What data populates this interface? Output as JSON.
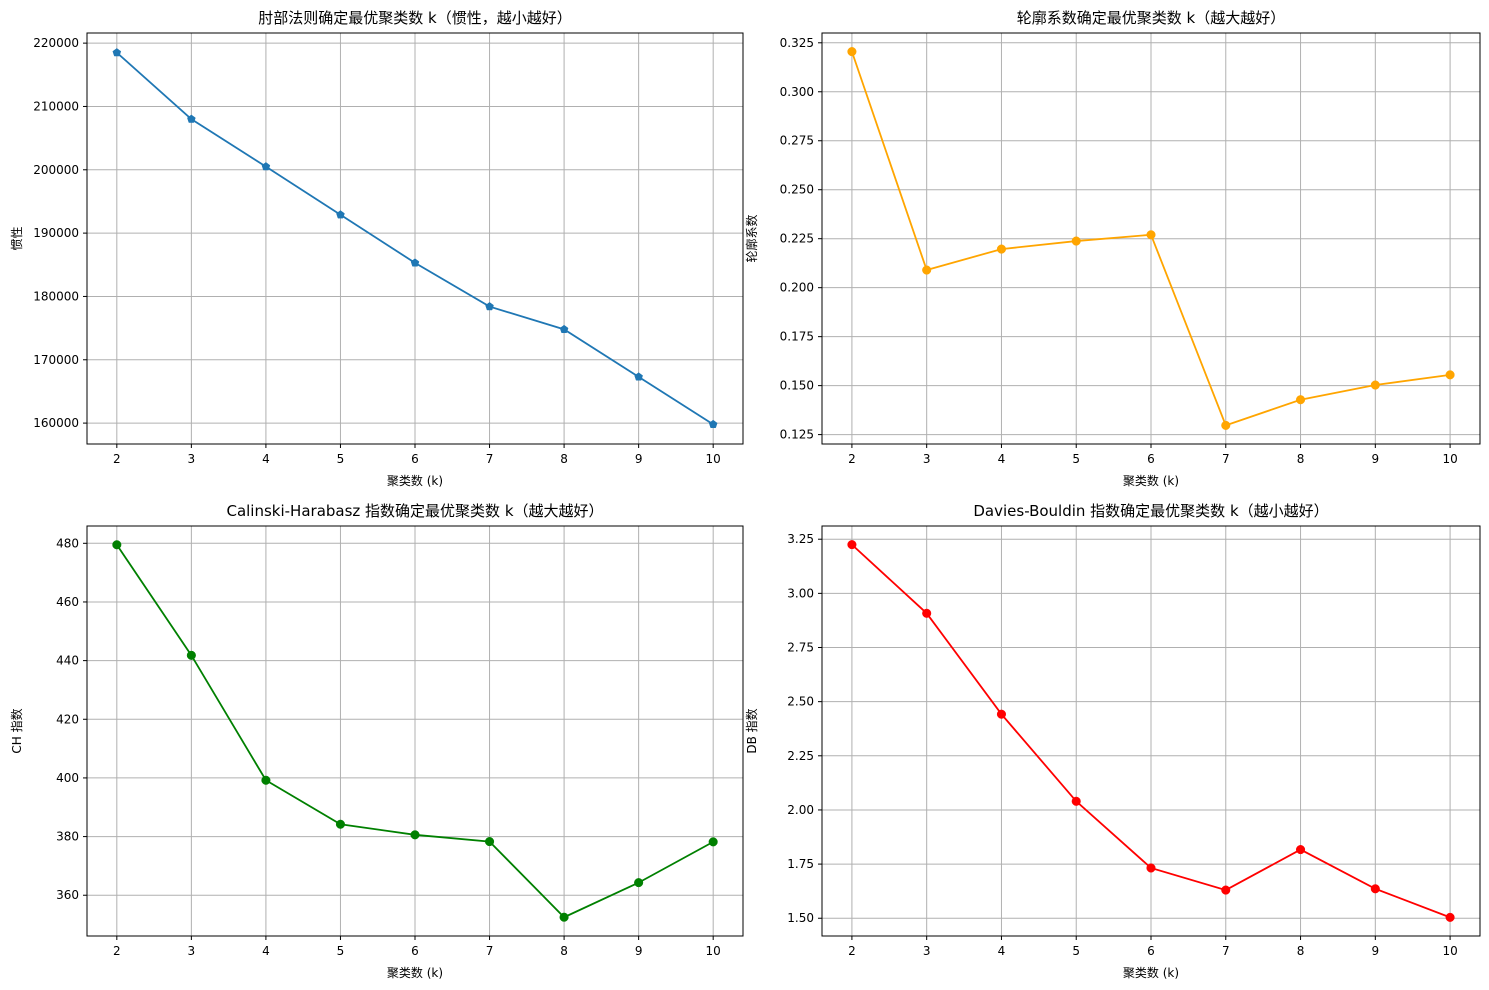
{
  "chart_data": [
    {
      "type": "line",
      "title": "肘部法则确定最优聚类数 k（惯性，越小越好）",
      "xlabel": "聚类数 (k)",
      "ylabel": "惯性",
      "x": [
        2,
        3,
        4,
        5,
        6,
        7,
        8,
        9,
        10
      ],
      "series": [
        {
          "color": "#1f77b4",
          "marker": "pentagon",
          "values": [
            218500,
            208000,
            200500,
            192900,
            185300,
            178400,
            174800,
            167300,
            159800
          ]
        }
      ],
      "xlim": [
        1.6,
        10.4
      ],
      "ylim": [
        156700,
        221600
      ],
      "xticks": [
        2,
        3,
        4,
        5,
        6,
        7,
        8,
        9,
        10
      ],
      "yticks": [
        160000,
        170000,
        180000,
        190000,
        200000,
        210000,
        220000
      ],
      "ytick_labels": [
        "160000",
        "170000",
        "180000",
        "190000",
        "200000",
        "210000",
        "220000"
      ],
      "grid": true
    },
    {
      "type": "line",
      "title": "轮廓系数确定最优聚类数 k（越大越好）",
      "xlabel": "聚类数 (k)",
      "ylabel": "轮廓系数",
      "x": [
        2,
        3,
        4,
        5,
        6,
        7,
        8,
        9,
        10
      ],
      "series": [
        {
          "color": "#ffa500",
          "marker": "circle",
          "values": [
            0.3205,
            0.209,
            0.2197,
            0.2238,
            0.227,
            0.1297,
            0.1428,
            0.1503,
            0.1555
          ]
        }
      ],
      "xlim": [
        1.6,
        10.4
      ],
      "ylim": [
        0.1202,
        0.33
      ],
      "xticks": [
        2,
        3,
        4,
        5,
        6,
        7,
        8,
        9,
        10
      ],
      "yticks": [
        0.125,
        0.15,
        0.175,
        0.2,
        0.225,
        0.25,
        0.275,
        0.3,
        0.325
      ],
      "ytick_labels": [
        "0.125",
        "0.150",
        "0.175",
        "0.200",
        "0.225",
        "0.250",
        "0.275",
        "0.300",
        "0.325"
      ],
      "grid": true
    },
    {
      "type": "line",
      "title": "Calinski-Harabasz 指数确定最优聚类数 k（越大越好）",
      "xlabel": "聚类数 (k)",
      "ylabel": "CH 指数",
      "x": [
        2,
        3,
        4,
        5,
        6,
        7,
        8,
        9,
        10
      ],
      "series": [
        {
          "color": "#008000",
          "marker": "circle",
          "values": [
            479.5,
            441.8,
            399.2,
            384.2,
            380.6,
            378.3,
            352.5,
            364.3,
            378.2
          ]
        }
      ],
      "xlim": [
        1.6,
        10.4
      ],
      "ylim": [
        346.1,
        485.9
      ],
      "xticks": [
        2,
        3,
        4,
        5,
        6,
        7,
        8,
        9,
        10
      ],
      "yticks": [
        360,
        380,
        400,
        420,
        440,
        460,
        480
      ],
      "ytick_labels": [
        "360",
        "380",
        "400",
        "420",
        "440",
        "460",
        "480"
      ],
      "grid": true
    },
    {
      "type": "line",
      "title": "Davies-Bouldin 指数确定最优聚类数 k（越小越好）",
      "xlabel": "聚类数 (k)",
      "ylabel": "DB 指数",
      "x": [
        2,
        3,
        4,
        5,
        6,
        7,
        8,
        9,
        10
      ],
      "series": [
        {
          "color": "#ff0000",
          "marker": "circle",
          "values": [
            3.225,
            2.908,
            2.442,
            2.04,
            1.732,
            1.63,
            1.817,
            1.636,
            1.504
          ]
        }
      ],
      "xlim": [
        1.6,
        10.4
      ],
      "ylim": [
        1.418,
        3.311
      ],
      "xticks": [
        2,
        3,
        4,
        5,
        6,
        7,
        8,
        9,
        10
      ],
      "yticks": [
        1.5,
        1.75,
        2.0,
        2.25,
        2.5,
        2.75,
        3.0,
        3.25
      ],
      "ytick_labels": [
        "1.50",
        "1.75",
        "2.00",
        "2.25",
        "2.50",
        "2.75",
        "3.00",
        "3.25"
      ],
      "grid": true
    }
  ]
}
